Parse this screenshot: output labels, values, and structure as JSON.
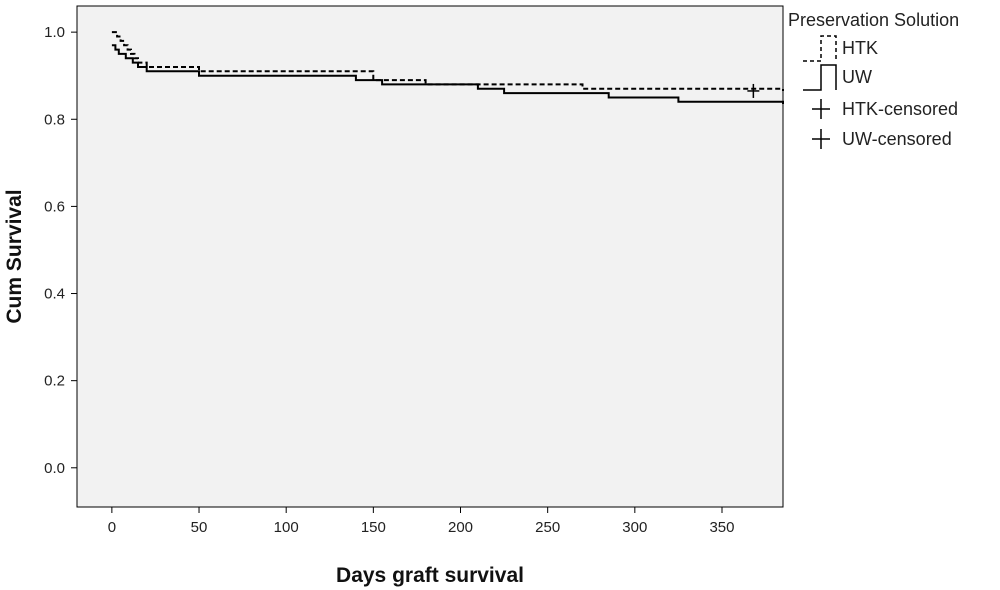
{
  "chart_data": {
    "type": "line",
    "subtype": "kaplan-meier-survival",
    "xlabel": "Days graft survival",
    "ylabel": "Cum Survival",
    "xlim": [
      -20,
      385
    ],
    "ylim": [
      -0.09,
      1.06
    ],
    "x_ticks": [
      0,
      50,
      100,
      150,
      200,
      250,
      300,
      350
    ],
    "y_ticks": [
      0.0,
      0.2,
      0.4,
      0.6,
      0.8,
      1.0
    ],
    "y_tick_labels": [
      "0.0",
      "0.2",
      "0.4",
      "0.6",
      "0.8",
      "1.0"
    ],
    "grid": false,
    "legend": {
      "title": "Preservation Solution",
      "placement": "right",
      "items": [
        {
          "label": "HTK",
          "kind": "line",
          "style": "dashed"
        },
        {
          "label": "UW",
          "kind": "line",
          "style": "solid"
        },
        {
          "label": "HTK-censored",
          "kind": "marker"
        },
        {
          "label": "UW-censored",
          "kind": "marker"
        }
      ]
    },
    "series": [
      {
        "name": "HTK",
        "style": "dashed",
        "x": [
          0,
          3,
          5,
          7,
          9,
          11,
          13,
          15,
          20,
          50,
          150,
          180,
          220,
          270,
          385
        ],
        "y": [
          1.0,
          0.99,
          0.98,
          0.97,
          0.96,
          0.95,
          0.94,
          0.93,
          0.92,
          0.91,
          0.89,
          0.88,
          0.88,
          0.87,
          0.865
        ],
        "censored": [
          {
            "x": 368,
            "y": 0.865
          }
        ]
      },
      {
        "name": "UW",
        "style": "solid",
        "x": [
          0,
          2,
          4,
          8,
          12,
          15,
          20,
          50,
          140,
          155,
          210,
          225,
          285,
          325,
          385
        ],
        "y": [
          0.97,
          0.96,
          0.95,
          0.94,
          0.93,
          0.92,
          0.91,
          0.9,
          0.89,
          0.88,
          0.87,
          0.86,
          0.85,
          0.84,
          0.835
        ],
        "censored": []
      }
    ],
    "colors": {
      "plot_background": "#f2f2f2",
      "line": "#000000"
    }
  }
}
